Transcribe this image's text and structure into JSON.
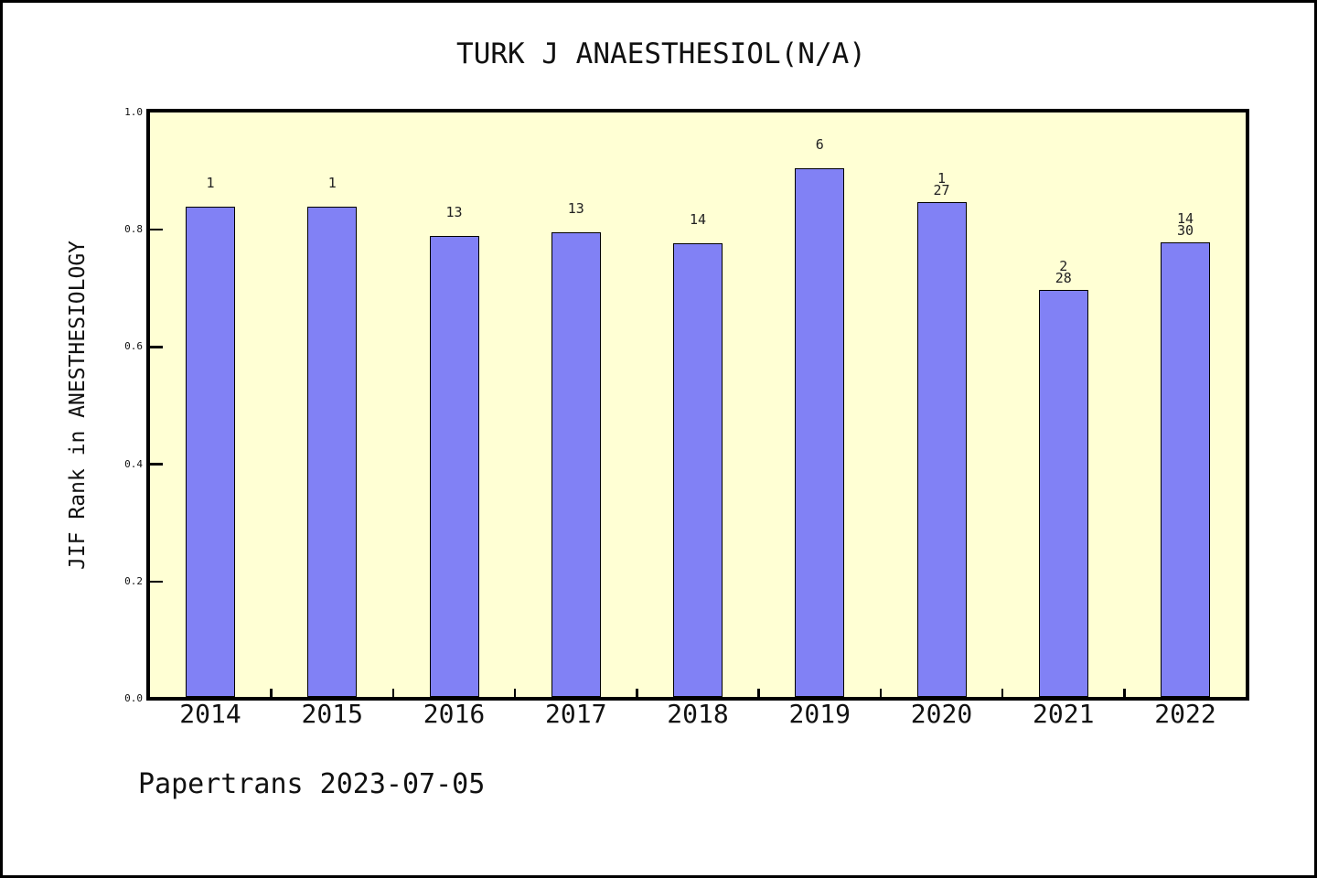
{
  "title": "TURK J ANAESTHESIOL(N/A)",
  "footer": {
    "text": "Papertrans 2023-07-05"
  },
  "colors": {
    "page_bg": "#FFFFFF",
    "frame": "#000000",
    "plot_bg": "#FFFFD4",
    "bar_fill": "#8181F5",
    "bar_edge": "#000000",
    "text": "#111111"
  },
  "chart_data": {
    "type": "bar",
    "title": "TURK J ANAESTHESIOL(N/A)",
    "xlabel": "",
    "ylabel": "JIF Rank in ANESTHESIOLOGY",
    "categories": [
      "2014",
      "2015",
      "2016",
      "2017",
      "2018",
      "2019",
      "2020",
      "2021",
      "2022"
    ],
    "values": [
      0.84,
      0.839,
      0.79,
      0.796,
      0.777,
      0.905,
      0.847,
      0.698,
      0.778
    ],
    "bar_labels": [
      [
        "1"
      ],
      [
        "1"
      ],
      [
        "13"
      ],
      [
        "13"
      ],
      [
        "14"
      ],
      [
        "6"
      ],
      [
        "1",
        "27"
      ],
      [
        "2",
        "28"
      ],
      [
        "14",
        "30"
      ]
    ],
    "ylim": [
      0.0,
      1.0
    ],
    "yticks": [
      0.0,
      0.2,
      0.4,
      0.6,
      0.8,
      1.0
    ],
    "ytick_labels": [
      "0.0",
      "0.2",
      "0.4",
      "0.6",
      "0.8",
      "1.0"
    ],
    "grid": false,
    "legend_position": "none",
    "annotation": "Papertrans 2023-07-05"
  }
}
